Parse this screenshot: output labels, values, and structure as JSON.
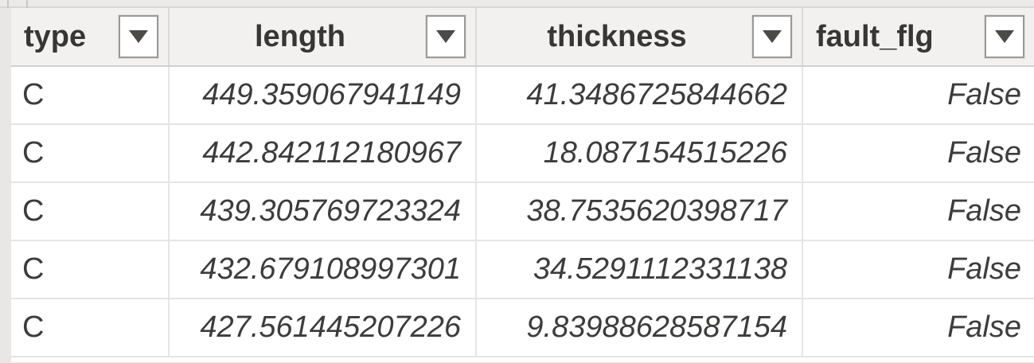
{
  "header": {
    "columns": [
      {
        "label": "type"
      },
      {
        "label": "length"
      },
      {
        "label": "thickness"
      },
      {
        "label": "fault_flg"
      }
    ]
  },
  "icons": {
    "filter_dropdown": "▼"
  },
  "rows": [
    {
      "type": "C",
      "length": "449.359067941149",
      "thickness": "41.3486725844662",
      "fault_flg": "False"
    },
    {
      "type": "C",
      "length": "442.842112180967",
      "thickness": "18.087154515226",
      "fault_flg": "False"
    },
    {
      "type": "C",
      "length": "439.305769723324",
      "thickness": "38.7535620398717",
      "fault_flg": "False"
    },
    {
      "type": "C",
      "length": "432.679108997301",
      "thickness": "34.5291112331138",
      "fault_flg": "False"
    },
    {
      "type": "C",
      "length": "427.561445207226",
      "thickness": "9.83988628587154",
      "fault_flg": "False"
    }
  ],
  "colors": {
    "header_bg": "#f2f1f0",
    "row_bg": "#ffffff",
    "outer_bg": "#e9e7e5",
    "grid_line": "#e6e4e2",
    "header_text": "#373635",
    "cell_text": "#3d3c3b",
    "filter_button_border": "#9b9997",
    "dropdown_arrow": "#4c4a48"
  }
}
